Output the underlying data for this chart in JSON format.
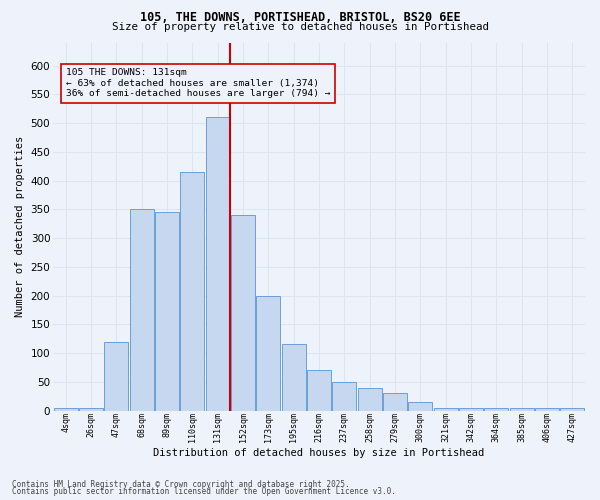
{
  "title_line1": "105, THE DOWNS, PORTISHEAD, BRISTOL, BS20 6EE",
  "title_line2": "Size of property relative to detached houses in Portishead",
  "xlabel": "Distribution of detached houses by size in Portishead",
  "ylabel": "Number of detached properties",
  "annotation_title": "105 THE DOWNS: 131sqm",
  "annotation_line2": "← 63% of detached houses are smaller (1,374)",
  "annotation_line3": "36% of semi-detached houses are larger (794) →",
  "footnote_line1": "Contains HM Land Registry data © Crown copyright and database right 2025.",
  "footnote_line2": "Contains public sector information licensed under the Open Government Licence v3.0.",
  "bar_color": "#c5d8f0",
  "bar_edge_color": "#6a9fd8",
  "grid_color": "#dce6f1",
  "vline_color": "#cc0000",
  "annotation_box_color": "#cc0000",
  "background_color": "#eef3fb",
  "categories": [
    "4sqm",
    "26sqm",
    "47sqm",
    "68sqm",
    "89sqm",
    "110sqm",
    "131sqm",
    "152sqm",
    "173sqm",
    "195sqm",
    "216sqm",
    "237sqm",
    "258sqm",
    "279sqm",
    "300sqm",
    "321sqm",
    "342sqm",
    "364sqm",
    "385sqm",
    "406sqm",
    "427sqm"
  ],
  "values": [
    5,
    5,
    120,
    350,
    345,
    415,
    510,
    340,
    200,
    115,
    70,
    50,
    40,
    30,
    15,
    5,
    5,
    5,
    5,
    5,
    5
  ],
  "vline_index": 6,
  "ylim": [
    0,
    640
  ],
  "yticks": [
    0,
    50,
    100,
    150,
    200,
    250,
    300,
    350,
    400,
    450,
    500,
    550,
    600
  ]
}
